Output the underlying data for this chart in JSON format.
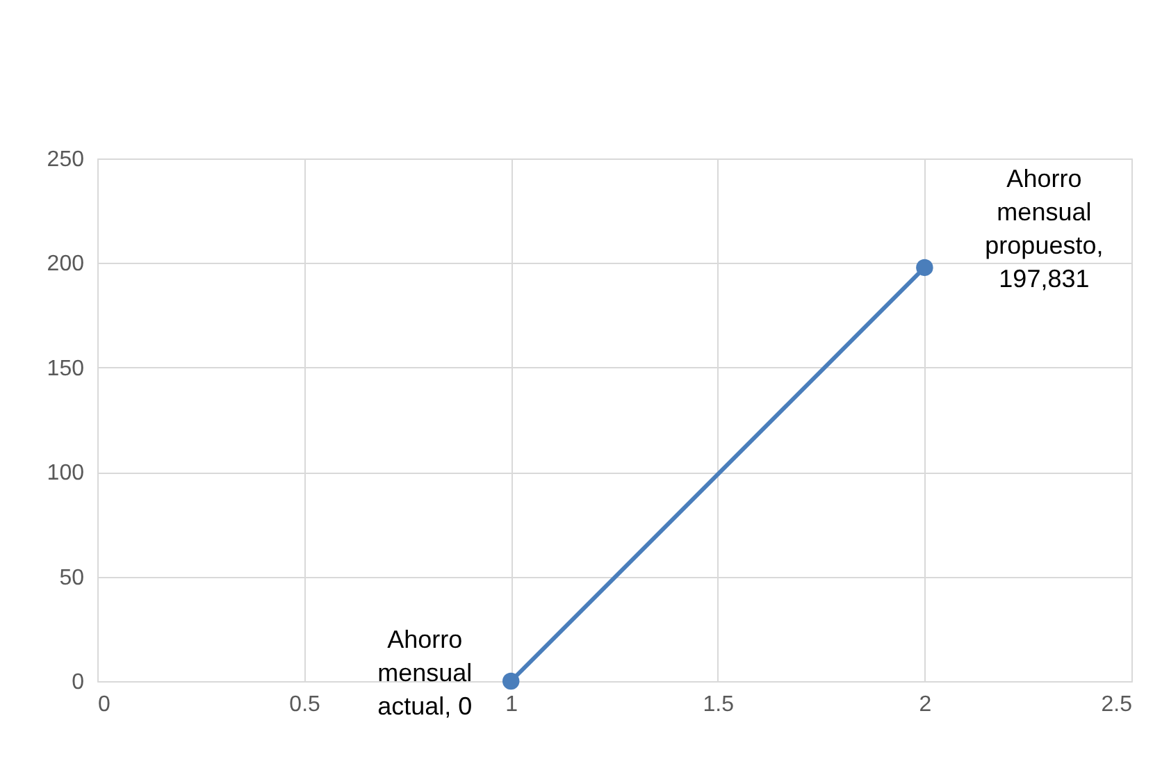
{
  "chart_data": {
    "type": "line",
    "x": [
      1,
      2
    ],
    "series": [
      {
        "color": "#4a7ebb",
        "values": [
          0,
          197.831
        ]
      }
    ],
    "xlim": [
      0,
      2.5
    ],
    "xticks": [
      0,
      0.5,
      1,
      1.5,
      2,
      2.5
    ],
    "ylim": [
      0,
      250
    ],
    "yticks": [
      0,
      50,
      100,
      150,
      200,
      250
    ],
    "annotations": [
      {
        "text": "Ahorro mensual actual, 0",
        "x": 1,
        "y": 0
      },
      {
        "text": "Ahorro mensual propuesto, 197,831",
        "x": 2,
        "y": 197.831
      }
    ],
    "grid": true,
    "marker": "circle",
    "line_style": "solid"
  }
}
